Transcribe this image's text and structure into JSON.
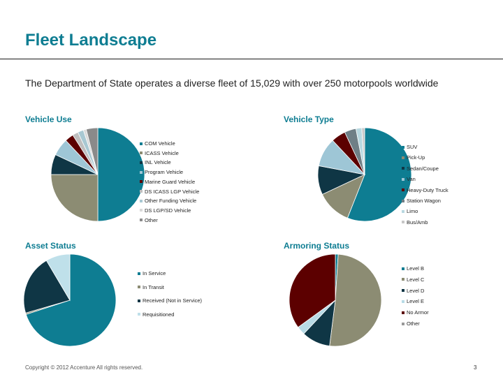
{
  "title": "Fleet Landscape",
  "subtitle": "The Department of State operates a diverse fleet of 15,029 with over 250 motorpools worldwide",
  "footer": "Copyright © 2012 Accenture All rights reserved.",
  "page_number": "3",
  "chart_data": [
    {
      "type": "pie",
      "title": "Vehicle Use",
      "legend_position": "right",
      "labels": [
        "COM Vehicle",
        "ICASS Vehicle",
        "INL Vehicle",
        "Program Vehicle",
        "Marine Guard Vehicle",
        "DS ICASS LGP Vehicle",
        "Other Funding Vehicle",
        "DS LGP/SD Vehicle",
        "Other"
      ],
      "values": [
        50,
        25,
        7,
        6,
        3,
        2,
        2,
        1,
        4
      ],
      "colors": [
        "#0e7d92",
        "#8c8c73",
        "#0f3645",
        "#9ec6d6",
        "#5c0000",
        "#bfbfbf",
        "#a8c8d2",
        "#d9d9d9",
        "#8a8a8a"
      ]
    },
    {
      "type": "pie",
      "title": "Vehicle Type",
      "legend_position": "right",
      "labels": [
        "SUV",
        "Pick-Up",
        "Sedan/Coupe",
        "Van",
        "Heavy-Duty Truck",
        "Station Wagon",
        "Limo",
        "Bus/Amb"
      ],
      "values": [
        56,
        12,
        10,
        10,
        5,
        4,
        2,
        1
      ],
      "colors": [
        "#0e7d92",
        "#8c8c73",
        "#0f3645",
        "#9ec6d6",
        "#5c0000",
        "#6f7f86",
        "#b8d8e0",
        "#c8c8c8"
      ]
    },
    {
      "type": "pie",
      "title": "Asset Status",
      "legend_position": "right",
      "labels": [
        "In Service",
        "In Transit",
        "Received (Not in Service)",
        "Requisitioned"
      ],
      "values": [
        70,
        0.5,
        21,
        8.5
      ],
      "colors": [
        "#0e7d92",
        "#8c8c73",
        "#0f3645",
        "#bfe0ea"
      ]
    },
    {
      "type": "pie",
      "title": "Armoring Status",
      "legend_position": "right",
      "labels": [
        "Level B",
        "Level C",
        "Level D",
        "Level E",
        "No Armor",
        "Other"
      ],
      "values": [
        1,
        51,
        10,
        3,
        35,
        0
      ],
      "colors": [
        "#0e7d92",
        "#8c8c73",
        "#0f3645",
        "#b8dbe6",
        "#5c0000",
        "#999999"
      ]
    }
  ]
}
